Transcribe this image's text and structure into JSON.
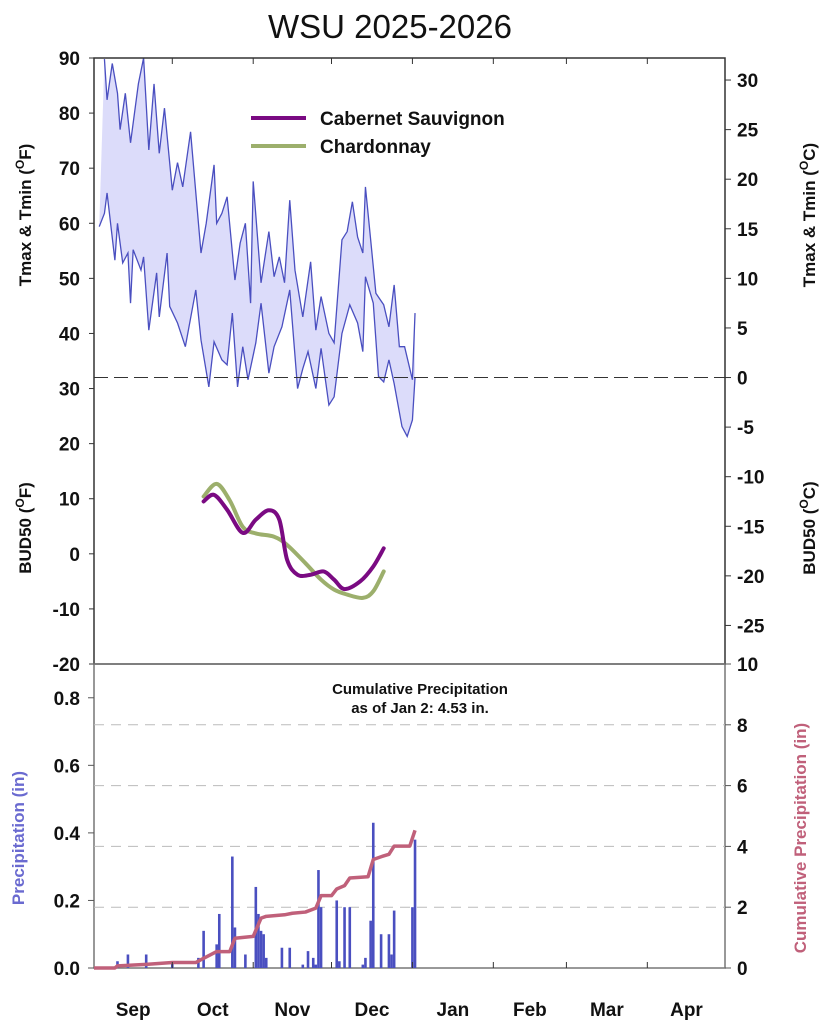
{
  "chart_data": [
    {
      "type": "area",
      "title": "WSU 2025-2026",
      "ylabel_left": {
        "pre": "Tmax & Tmin (",
        "sup": "O",
        "post": "F)"
      },
      "ylabel_right": {
        "pre": "Tmax & Tmin (",
        "sup": "O",
        "post": "C)"
      },
      "ylim_left": [
        -20,
        90
      ],
      "left_ticks": [
        90,
        80,
        70,
        60,
        50,
        40,
        30,
        20
      ],
      "right_ticks_c": [
        30,
        25,
        20,
        15,
        10,
        5,
        0,
        -5
      ],
      "reference_line_f": 32,
      "colors": {
        "line": "#4a4fc0",
        "fill": "#dcdcfa"
      },
      "tmax": [
        [
          "2025-09-05",
          89.8
        ],
        [
          "2025-09-06",
          82.4
        ],
        [
          "2025-09-08",
          89
        ],
        [
          "2025-09-10",
          83.6
        ],
        [
          "2025-09-11",
          77
        ],
        [
          "2025-09-13",
          83.6
        ],
        [
          "2025-09-15",
          74.6
        ],
        [
          "2025-09-18",
          85.3
        ],
        [
          "2025-09-20",
          90
        ],
        [
          "2025-09-22",
          73.3
        ],
        [
          "2025-09-24",
          85.3
        ],
        [
          "2025-09-26",
          72.7
        ],
        [
          "2025-09-28",
          80.9
        ],
        [
          "2025-10-01",
          66
        ],
        [
          "2025-10-03",
          71
        ],
        [
          "2025-10-05",
          66.6
        ],
        [
          "2025-10-08",
          76.6
        ],
        [
          "2025-10-12",
          54.6
        ],
        [
          "2025-10-14",
          60
        ],
        [
          "2025-10-17",
          70.6
        ],
        [
          "2025-10-18",
          60
        ],
        [
          "2025-10-20",
          61.8
        ],
        [
          "2025-10-22",
          64.8
        ],
        [
          "2025-10-25",
          49.7
        ],
        [
          "2025-10-27",
          56.4
        ],
        [
          "2025-10-29",
          60
        ],
        [
          "2025-10-31",
          45.5
        ],
        [
          "2025-11-01",
          67.6
        ],
        [
          "2025-11-04",
          49.2
        ],
        [
          "2025-11-07",
          58.5
        ],
        [
          "2025-11-09",
          50.3
        ],
        [
          "2025-11-11",
          53.9
        ],
        [
          "2025-11-13",
          49.2
        ],
        [
          "2025-11-15",
          64.2
        ],
        [
          "2025-11-17",
          51.5
        ],
        [
          "2025-11-20",
          43
        ],
        [
          "2025-11-23",
          53
        ],
        [
          "2025-11-25",
          40.6
        ],
        [
          "2025-11-27",
          46.7
        ],
        [
          "2025-11-30",
          40
        ],
        [
          "2025-12-02",
          38.3
        ],
        [
          "2025-12-05",
          57
        ],
        [
          "2025-12-07",
          58.5
        ],
        [
          "2025-12-09",
          63.9
        ],
        [
          "2025-12-11",
          57.5
        ],
        [
          "2025-12-13",
          54.6
        ],
        [
          "2025-12-14",
          66.6
        ],
        [
          "2025-12-16",
          57
        ],
        [
          "2025-12-18",
          47.3
        ],
        [
          "2025-12-21",
          45.2
        ],
        [
          "2025-12-23",
          41.2
        ],
        [
          "2025-12-25",
          48.8
        ],
        [
          "2025-12-27",
          37.6
        ],
        [
          "2025-12-29",
          37.6
        ],
        [
          "2026-01-01",
          31.6
        ],
        [
          "2026-01-02",
          43.7
        ]
      ],
      "tmin": [
        [
          "2025-09-03",
          59.4
        ],
        [
          "2025-09-05",
          61.8
        ],
        [
          "2025-09-06",
          65.5
        ],
        [
          "2025-09-09",
          53.3
        ],
        [
          "2025-09-10",
          60
        ],
        [
          "2025-09-12",
          52.8
        ],
        [
          "2025-09-14",
          54.6
        ],
        [
          "2025-09-15",
          45.5
        ],
        [
          "2025-09-16",
          55.2
        ],
        [
          "2025-09-19",
          51.5
        ],
        [
          "2025-09-20",
          53.9
        ],
        [
          "2025-09-22",
          40.6
        ],
        [
          "2025-09-25",
          51
        ],
        [
          "2025-09-26",
          43
        ],
        [
          "2025-09-29",
          54.6
        ],
        [
          "2025-09-30",
          44.9
        ],
        [
          "2025-10-03",
          41.9
        ],
        [
          "2025-10-06",
          37.6
        ],
        [
          "2025-10-10",
          47.9
        ],
        [
          "2025-10-12",
          38.8
        ],
        [
          "2025-10-15",
          30.3
        ],
        [
          "2025-10-17",
          38.5
        ],
        [
          "2025-10-20",
          35.2
        ],
        [
          "2025-10-22",
          34.3
        ],
        [
          "2025-10-24",
          43.7
        ],
        [
          "2025-10-26",
          30.3
        ],
        [
          "2025-10-28",
          37.6
        ],
        [
          "2025-10-30",
          31.6
        ],
        [
          "2025-11-02",
          38.3
        ],
        [
          "2025-11-04",
          45.5
        ],
        [
          "2025-11-07",
          32.8
        ],
        [
          "2025-11-09",
          37.6
        ],
        [
          "2025-11-12",
          41.2
        ],
        [
          "2025-11-15",
          47.9
        ],
        [
          "2025-11-18",
          30
        ],
        [
          "2025-11-20",
          33.6
        ],
        [
          "2025-11-22",
          36.7
        ],
        [
          "2025-11-25",
          30
        ],
        [
          "2025-11-27",
          37.3
        ],
        [
          "2025-11-30",
          27
        ],
        [
          "2025-12-02",
          28.5
        ],
        [
          "2025-12-05",
          40
        ],
        [
          "2025-12-08",
          45.2
        ],
        [
          "2025-12-11",
          41.9
        ],
        [
          "2025-12-13",
          36.7
        ],
        [
          "2025-12-14",
          50.3
        ],
        [
          "2025-12-17",
          45.5
        ],
        [
          "2025-12-19",
          32.2
        ],
        [
          "2025-12-21",
          31.2
        ],
        [
          "2025-12-23",
          35.2
        ],
        [
          "2025-12-25",
          30.9
        ],
        [
          "2025-12-28",
          23.1
        ],
        [
          "2025-12-30",
          21.3
        ],
        [
          "2026-01-01",
          24.3
        ],
        [
          "2026-01-02",
          32
        ]
      ]
    },
    {
      "type": "line",
      "ylabel_left": {
        "pre": "BUD50 (",
        "sup": "O",
        "post": "F)"
      },
      "ylabel_right": {
        "pre": "BUD50 (",
        "sup": "O",
        "post": "C)"
      },
      "left_ticks": [
        10,
        0,
        -10,
        -20
      ],
      "right_ticks_c": [
        -10,
        -15,
        -20,
        -25
      ],
      "legend": "top-center",
      "series": [
        {
          "name": "Cabernet Sauvignon",
          "color": "#7a0a82",
          "points": [
            [
              "2025-10-13",
              9.5
            ],
            [
              "2025-10-17",
              10.7
            ],
            [
              "2025-10-22",
              8
            ],
            [
              "2025-10-28",
              3.8
            ],
            [
              "2025-11-02",
              6.2
            ],
            [
              "2025-11-07",
              7.9
            ],
            [
              "2025-11-11",
              6.2
            ],
            [
              "2025-11-14",
              -1.1
            ],
            [
              "2025-11-18",
              -3.8
            ],
            [
              "2025-11-23",
              -3.8
            ],
            [
              "2025-11-28",
              -3.2
            ],
            [
              "2025-12-02",
              -4.7
            ],
            [
              "2025-12-06",
              -6.4
            ],
            [
              "2025-12-12",
              -5.0
            ],
            [
              "2025-12-17",
              -2.3
            ],
            [
              "2025-12-21",
              1.0
            ]
          ]
        },
        {
          "name": "Chardonnay",
          "color": "#9caf6c",
          "points": [
            [
              "2025-10-13",
              10.4
            ],
            [
              "2025-10-18",
              12.7
            ],
            [
              "2025-10-23",
              9.7
            ],
            [
              "2025-10-28",
              4.9
            ],
            [
              "2025-11-02",
              3.7
            ],
            [
              "2025-11-09",
              3.1
            ],
            [
              "2025-11-14",
              1.6
            ],
            [
              "2025-11-21",
              -1.7
            ],
            [
              "2025-11-27",
              -4.7
            ],
            [
              "2025-12-02",
              -6.5
            ],
            [
              "2025-12-07",
              -7.4
            ],
            [
              "2025-12-13",
              -8.0
            ],
            [
              "2025-12-17",
              -6.8
            ],
            [
              "2025-12-21",
              -3.2
            ]
          ]
        }
      ]
    },
    {
      "type": "bar",
      "ylabel_left": "Precipitation (in)",
      "ylabel_right": "Cumulative Precipitation (in)",
      "ylim_left": [
        0,
        0.9
      ],
      "ylim_right": [
        0,
        10
      ],
      "left_ticks": [
        "0.0",
        "0.2",
        "0.4",
        "0.6",
        "0.8"
      ],
      "right_ticks": [
        "0",
        "2",
        "4",
        "6",
        "8",
        "10"
      ],
      "grid": "dashed at right-axis ticks",
      "annotation_line1": "Cumulative Precipitation",
      "annotation_line2": "as of Jan 2:  4.53 in.",
      "colors": {
        "bars": "#4a4fc0",
        "cumulative": "#c0607a",
        "left_label": "#6a6ad0",
        "right_label": "#c0607a"
      },
      "daily_precip": [
        [
          "2025-09-10",
          0.02
        ],
        [
          "2025-09-14",
          0.04
        ],
        [
          "2025-09-21",
          0.04
        ],
        [
          "2025-10-01",
          0.02
        ],
        [
          "2025-10-11",
          0.03
        ],
        [
          "2025-10-13",
          0.11
        ],
        [
          "2025-10-18",
          0.07
        ],
        [
          "2025-10-19",
          0.16
        ],
        [
          "2025-10-24",
          0.33
        ],
        [
          "2025-10-25",
          0.12
        ],
        [
          "2025-10-29",
          0.04
        ],
        [
          "2025-11-02",
          0.24
        ],
        [
          "2025-11-03",
          0.16
        ],
        [
          "2025-11-04",
          0.11
        ],
        [
          "2025-11-05",
          0.1
        ],
        [
          "2025-11-06",
          0.03
        ],
        [
          "2025-11-12",
          0.06
        ],
        [
          "2025-11-15",
          0.06
        ],
        [
          "2025-11-20",
          0.01
        ],
        [
          "2025-11-22",
          0.05
        ],
        [
          "2025-11-24",
          0.03
        ],
        [
          "2025-11-25",
          0.01
        ],
        [
          "2025-11-26",
          0.29
        ],
        [
          "2025-11-27",
          0.18
        ],
        [
          "2025-12-03",
          0.2
        ],
        [
          "2025-12-04",
          0.02
        ],
        [
          "2025-12-06",
          0.18
        ],
        [
          "2025-12-08",
          0.18
        ],
        [
          "2025-12-13",
          0.01
        ],
        [
          "2025-12-14",
          0.03
        ],
        [
          "2025-12-16",
          0.14
        ],
        [
          "2025-12-17",
          0.43
        ],
        [
          "2025-12-20",
          0.1
        ],
        [
          "2025-12-23",
          0.1
        ],
        [
          "2025-12-24",
          0.04
        ],
        [
          "2025-12-25",
          0.17
        ],
        [
          "2026-01-01",
          0.18
        ],
        [
          "2026-01-02",
          0.38
        ]
      ],
      "cumulative": [
        [
          "2025-09-01",
          0
        ],
        [
          "2025-09-09",
          0
        ],
        [
          "2025-09-10",
          0.07
        ],
        [
          "2025-09-21",
          0.12
        ],
        [
          "2025-10-01",
          0.18
        ],
        [
          "2025-10-10",
          0.18
        ],
        [
          "2025-10-13",
          0.32
        ],
        [
          "2025-10-18",
          0.54
        ],
        [
          "2025-10-23",
          0.54
        ],
        [
          "2025-10-25",
          0.98
        ],
        [
          "2025-11-01",
          1.04
        ],
        [
          "2025-11-04",
          1.64
        ],
        [
          "2025-11-06",
          1.7
        ],
        [
          "2025-11-13",
          1.75
        ],
        [
          "2025-11-16",
          1.8
        ],
        [
          "2025-11-21",
          1.84
        ],
        [
          "2025-11-25",
          1.97
        ],
        [
          "2025-11-27",
          2.38
        ],
        [
          "2025-12-01",
          2.38
        ],
        [
          "2025-12-03",
          2.6
        ],
        [
          "2025-12-06",
          2.71
        ],
        [
          "2025-12-08",
          2.96
        ],
        [
          "2025-12-15",
          3.0
        ],
        [
          "2025-12-17",
          3.57
        ],
        [
          "2025-12-20",
          3.66
        ],
        [
          "2025-12-23",
          3.74
        ],
        [
          "2025-12-25",
          4.01
        ],
        [
          "2025-12-31",
          4.01
        ],
        [
          "2026-01-02",
          4.53
        ]
      ]
    }
  ],
  "x_axis": {
    "months": [
      "Sep",
      "Oct",
      "Nov",
      "Dec",
      "Jan",
      "Feb",
      "Mar",
      "Apr"
    ],
    "month_starts": [
      "2025-09-01",
      "2025-10-01",
      "2025-11-01",
      "2025-12-01",
      "2026-01-01",
      "2026-02-01",
      "2026-03-01",
      "2026-04-01",
      "2026-05-01"
    ]
  }
}
